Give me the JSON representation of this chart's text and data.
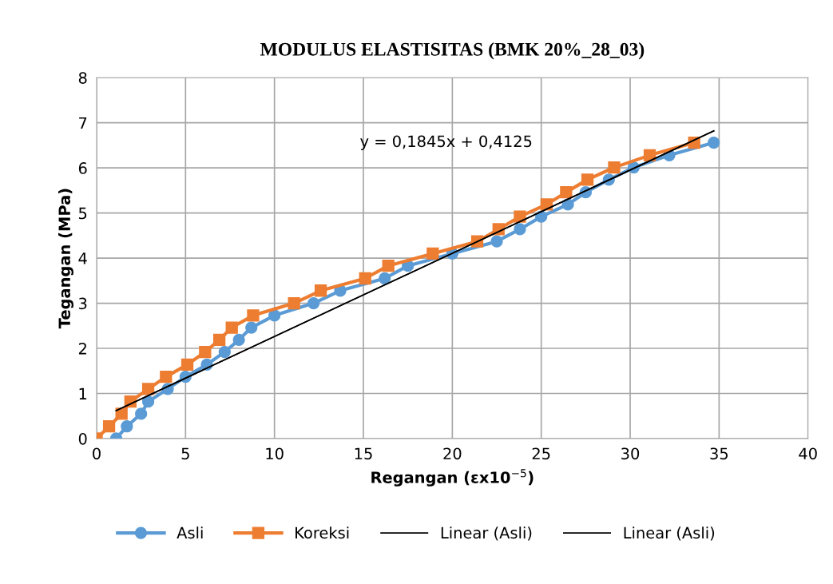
{
  "chart_data": {
    "type": "line",
    "title": "MODULUS ELASTISITAS (BMK 20%_28_03)",
    "xlabel": "Regangan (εx10$^{−5}$)",
    "ylabel": "Tegangan (MPa)",
    "xlim": [
      0,
      40
    ],
    "xticks": [
      0,
      5,
      10,
      15,
      20,
      25,
      30,
      35,
      40
    ],
    "ylim": [
      0,
      8
    ],
    "yticks": [
      0,
      1,
      2,
      3,
      4,
      5,
      6,
      7,
      8
    ],
    "grid": true,
    "legend": "bottom",
    "annotations": [
      "y = 0,1845x + 0,4125"
    ],
    "series": [
      {
        "name": "Asli",
        "color": "#5b9bd5",
        "marker": "circle",
        "x": [
          1.1,
          1.7,
          2.5,
          2.9,
          4.0,
          5.0,
          6.2,
          7.2,
          8.0,
          8.7,
          10.0,
          12.2,
          13.7,
          16.2,
          17.5,
          20.0,
          22.5,
          23.8,
          25.0,
          26.5,
          27.5,
          28.8,
          30.2,
          32.2,
          34.7
        ],
        "values": [
          0,
          0.27,
          0.55,
          0.82,
          1.1,
          1.37,
          1.64,
          1.92,
          2.19,
          2.46,
          2.73,
          3.0,
          3.28,
          3.55,
          3.83,
          4.1,
          4.37,
          4.64,
          4.92,
          5.19,
          5.46,
          5.74,
          6.01,
          6.28,
          6.56
        ]
      },
      {
        "name": "Koreksi",
        "color": "#ed7d31",
        "marker": "square",
        "x": [
          0,
          0.7,
          1.4,
          1.9,
          2.9,
          3.9,
          5.1,
          6.1,
          6.9,
          7.6,
          8.8,
          11.1,
          12.6,
          15.1,
          16.4,
          18.9,
          21.4,
          22.6,
          23.8,
          25.3,
          26.4,
          27.6,
          29.1,
          31.1,
          33.6
        ],
        "values": [
          0,
          0.27,
          0.55,
          0.82,
          1.1,
          1.37,
          1.64,
          1.92,
          2.19,
          2.46,
          2.73,
          3.0,
          3.28,
          3.55,
          3.83,
          4.1,
          4.37,
          4.64,
          4.92,
          5.19,
          5.46,
          5.74,
          6.01,
          6.28,
          6.56
        ]
      },
      {
        "name": "Linear (Asli)",
        "color": "#000000",
        "marker": "none",
        "x": [
          1.1,
          34.7
        ],
        "values": [
          0.62,
          6.82
        ]
      },
      {
        "name": "Linear (Asli)",
        "color": "#000000",
        "marker": "none",
        "x": [
          1.1,
          34.7
        ],
        "values": [
          0.62,
          6.82
        ]
      }
    ]
  }
}
